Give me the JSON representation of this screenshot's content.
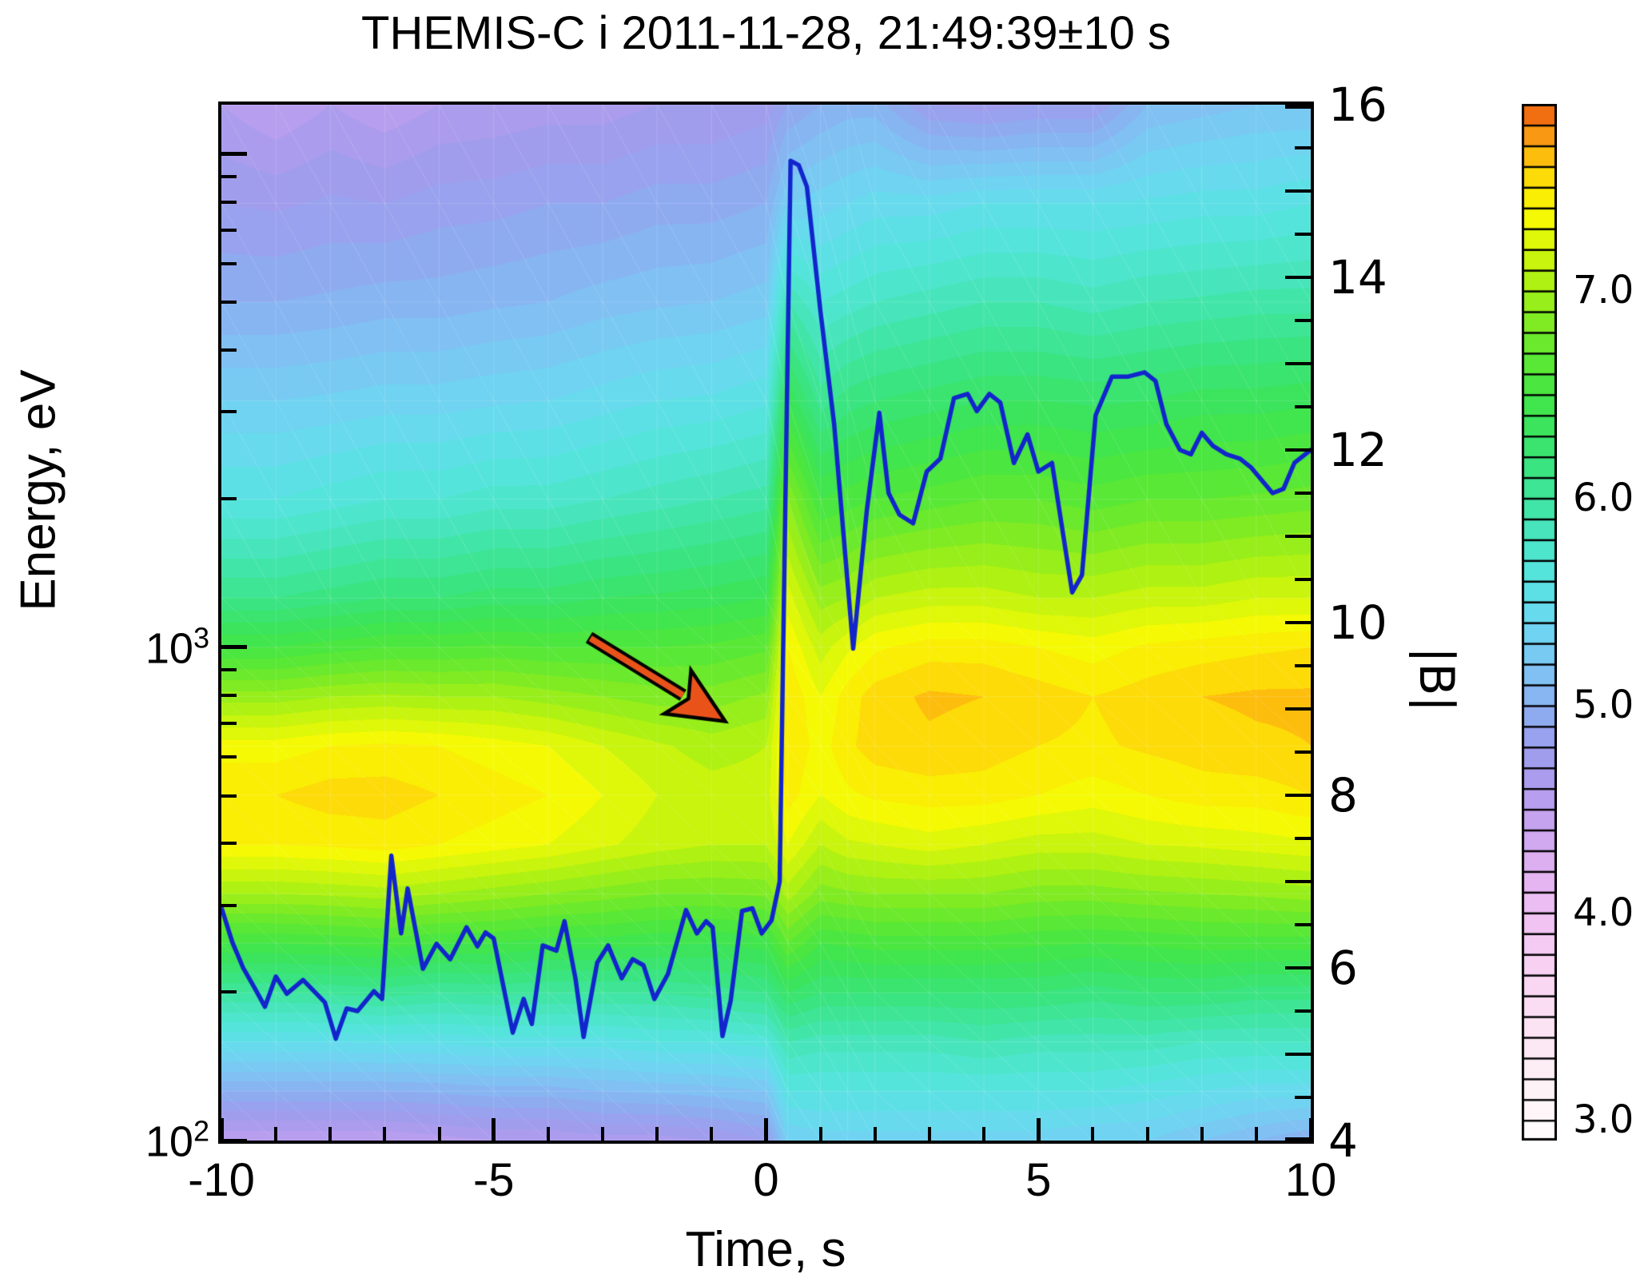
{
  "title": "THEMIS-C i 2011-11-28, 21:49:39±10 s",
  "axes": {
    "x": {
      "label": "Time, s",
      "min": -10,
      "max": 10,
      "major_ticks": [
        -10,
        -5,
        0,
        5,
        10
      ],
      "major_tick_labels": [
        "-10",
        "-5",
        "0",
        "5",
        "10"
      ],
      "minor_step": 1
    },
    "y_left": {
      "label": "Energy, eV",
      "scale": "log",
      "min_log10": 2.0,
      "max_log10": 4.1,
      "major_tick_labels": [
        {
          "base": "10",
          "exp": "2",
          "log10": 2
        },
        {
          "base": "10",
          "exp": "3",
          "log10": 3
        }
      ],
      "unlabeled_major_log10": [
        4
      ]
    },
    "y_right": {
      "label": "|B|",
      "min": 4,
      "max": 16,
      "major_step": 1,
      "minor_step": 0.5,
      "labeled_ticks": [
        16,
        14,
        12,
        10,
        8,
        6,
        4
      ],
      "labels": [
        "16",
        "14",
        "12",
        "10",
        "8",
        "6",
        "4"
      ]
    }
  },
  "colorbar": {
    "min_value": 2.9,
    "max_value": 7.9,
    "segments": 50,
    "tick_values": [
      7.0,
      6.0,
      5.0,
      4.0,
      3.0
    ],
    "tick_labels": [
      "7.0",
      "6.0",
      "5.0",
      "4.0",
      "3.0"
    ]
  },
  "colors": {
    "b_line": "#1225cc",
    "arrow_fill": "#e9531a",
    "arrow_outline": "#000000",
    "frame": "#000000",
    "colormap_anchors": [
      [
        2.9,
        "#fffcfd"
      ],
      [
        3.2,
        "#fdf0f5"
      ],
      [
        3.5,
        "#fbe0f3"
      ],
      [
        3.8,
        "#f6cdf2"
      ],
      [
        4.0,
        "#eec0f2"
      ],
      [
        4.2,
        "#e2b2f1"
      ],
      [
        4.4,
        "#cba6ef"
      ],
      [
        4.6,
        "#b19bed"
      ],
      [
        4.8,
        "#9c9ded"
      ],
      [
        5.0,
        "#8bb0f1"
      ],
      [
        5.2,
        "#7cc5f4"
      ],
      [
        5.4,
        "#6bd8f0"
      ],
      [
        5.6,
        "#59e3e2"
      ],
      [
        5.8,
        "#4be5c6"
      ],
      [
        6.0,
        "#3fe59e"
      ],
      [
        6.2,
        "#39e478"
      ],
      [
        6.4,
        "#3ce453"
      ],
      [
        6.6,
        "#50e73a"
      ],
      [
        6.8,
        "#74ea27"
      ],
      [
        7.0,
        "#a3ef15"
      ],
      [
        7.2,
        "#d4f50a"
      ],
      [
        7.35,
        "#f5fa04"
      ],
      [
        7.5,
        "#fde806"
      ],
      [
        7.6,
        "#fdcf09"
      ],
      [
        7.7,
        "#fcab10"
      ],
      [
        7.8,
        "#f68414"
      ],
      [
        7.88,
        "#ee620f"
      ],
      [
        7.95,
        "#e44b0d"
      ]
    ]
  },
  "chart_data": {
    "type": "heatmap",
    "title": "THEMIS-C i 2011-11-28, 21:49:39±10 s",
    "xlabel": "Time, s",
    "ylabel": "Energy, eV",
    "colorbar_label_values": [
      7.0,
      6.0,
      5.0,
      4.0,
      3.0
    ],
    "xlim": [
      -10,
      10
    ],
    "ylim_log10_ev": [
      2.0,
      4.1
    ],
    "value_range": [
      2.9,
      7.9
    ],
    "spectrogram": {
      "comment": "log10 ion energy flux vs time (s) and log10 energy (eV); rows of values follow log_energy order (high to low)",
      "times": [
        -10,
        -9,
        -8,
        -7,
        -6,
        -5,
        -4,
        -3,
        -2,
        -1,
        0,
        0.4,
        1,
        1.5,
        2,
        3,
        4,
        5,
        6,
        7,
        8,
        9,
        10
      ],
      "log_energy": [
        4.1,
        3.9,
        3.7,
        3.5,
        3.3,
        3.1,
        3.0,
        2.9,
        2.8,
        2.7,
        2.6,
        2.5,
        2.4,
        2.3,
        2.2,
        2.1,
        2.0
      ],
      "values": [
        [
          4.6,
          4.8,
          5.0,
          5.3,
          5.6,
          6.1,
          6.5,
          6.95,
          7.35,
          7.5,
          7.4,
          7.0,
          6.5,
          6.0,
          5.5,
          5.0,
          4.5
        ],
        [
          4.5,
          4.78,
          5.0,
          5.3,
          5.6,
          6.1,
          6.5,
          6.95,
          7.35,
          7.5,
          7.4,
          7.0,
          6.5,
          6.0,
          5.5,
          5.0,
          4.5
        ],
        [
          4.6,
          4.82,
          5.02,
          5.32,
          5.65,
          6.15,
          6.55,
          7.0,
          7.4,
          7.55,
          7.42,
          7.02,
          6.52,
          6.02,
          5.5,
          5.0,
          4.5
        ],
        [
          4.52,
          4.8,
          5.05,
          5.35,
          5.7,
          6.2,
          6.6,
          7.02,
          7.42,
          7.55,
          7.45,
          7.05,
          6.55,
          6.05,
          5.52,
          5.0,
          4.5
        ],
        [
          4.6,
          4.85,
          5.05,
          5.35,
          5.7,
          6.2,
          6.6,
          7.0,
          7.4,
          7.5,
          7.4,
          7.0,
          6.5,
          6.0,
          5.52,
          5.02,
          4.55
        ],
        [
          4.62,
          4.86,
          5.08,
          5.38,
          5.75,
          6.25,
          6.62,
          7.0,
          7.35,
          7.45,
          7.35,
          6.95,
          6.5,
          6.02,
          5.55,
          5.05,
          4.6
        ],
        [
          4.65,
          4.9,
          5.1,
          5.4,
          5.75,
          6.25,
          6.6,
          6.95,
          7.3,
          7.4,
          7.3,
          6.9,
          6.45,
          6.0,
          5.55,
          5.05,
          4.6
        ],
        [
          4.65,
          4.9,
          5.15,
          5.45,
          5.8,
          6.3,
          6.6,
          6.9,
          7.2,
          7.3,
          7.22,
          6.85,
          6.45,
          6.0,
          5.55,
          5.1,
          4.65
        ],
        [
          4.7,
          4.95,
          5.18,
          5.5,
          5.85,
          6.32,
          6.6,
          6.85,
          7.12,
          7.2,
          7.15,
          6.8,
          6.42,
          6.0,
          5.6,
          5.12,
          4.65
        ],
        [
          4.7,
          4.95,
          5.2,
          5.52,
          5.9,
          6.35,
          6.62,
          6.85,
          7.05,
          7.15,
          7.1,
          6.8,
          6.4,
          6.05,
          5.6,
          5.15,
          4.7
        ],
        [
          4.75,
          5.0,
          5.25,
          5.58,
          5.95,
          6.4,
          6.68,
          6.92,
          7.1,
          7.15,
          7.1,
          6.82,
          6.45,
          6.1,
          5.65,
          5.2,
          4.8
        ],
        [
          4.9,
          5.3,
          5.9,
          6.4,
          6.9,
          7.25,
          7.4,
          7.5,
          7.5,
          7.45,
          7.3,
          7.05,
          6.7,
          6.3,
          5.9,
          5.6,
          5.3
        ],
        [
          5.0,
          5.35,
          5.7,
          6.05,
          6.5,
          6.95,
          7.15,
          7.3,
          7.35,
          7.3,
          7.1,
          6.85,
          6.5,
          6.2,
          5.85,
          5.6,
          5.35
        ],
        [
          5.05,
          5.4,
          5.75,
          6.15,
          6.55,
          7.0,
          7.28,
          7.45,
          7.48,
          7.38,
          7.18,
          6.88,
          6.52,
          6.2,
          5.85,
          5.6,
          5.35
        ],
        [
          5.05,
          5.45,
          5.8,
          6.2,
          6.6,
          7.1,
          7.38,
          7.55,
          7.55,
          7.42,
          7.2,
          6.9,
          6.55,
          6.2,
          5.85,
          5.6,
          5.35
        ],
        [
          4.8,
          5.45,
          5.85,
          6.25,
          6.65,
          7.15,
          7.45,
          7.62,
          7.58,
          7.45,
          7.25,
          6.9,
          6.55,
          6.2,
          5.85,
          5.6,
          5.35
        ],
        [
          4.75,
          5.5,
          5.9,
          6.3,
          6.7,
          7.15,
          7.45,
          7.6,
          7.55,
          7.45,
          7.2,
          6.9,
          6.55,
          6.2,
          5.9,
          5.6,
          5.35
        ],
        [
          4.8,
          5.5,
          5.9,
          6.3,
          6.7,
          7.1,
          7.4,
          7.55,
          7.5,
          7.4,
          7.15,
          6.85,
          6.52,
          6.2,
          5.85,
          5.6,
          5.35
        ],
        [
          4.8,
          5.5,
          5.85,
          6.28,
          6.65,
          7.1,
          7.35,
          7.5,
          7.48,
          7.35,
          7.15,
          6.85,
          6.5,
          6.15,
          5.85,
          5.6,
          5.3
        ],
        [
          5.1,
          5.52,
          5.9,
          6.3,
          6.7,
          7.15,
          7.42,
          7.55,
          7.52,
          7.4,
          7.2,
          6.88,
          6.52,
          6.2,
          5.85,
          5.55,
          5.3
        ],
        [
          5.15,
          5.55,
          5.92,
          6.35,
          6.7,
          7.15,
          7.45,
          7.6,
          7.55,
          7.45,
          7.22,
          6.9,
          6.55,
          6.2,
          5.8,
          5.5,
          5.2
        ],
        [
          5.2,
          5.55,
          5.95,
          6.35,
          6.72,
          7.2,
          7.48,
          7.62,
          7.58,
          7.45,
          7.25,
          6.92,
          6.55,
          6.15,
          5.8,
          5.45,
          5.1
        ],
        [
          5.2,
          5.6,
          5.95,
          6.38,
          6.75,
          7.2,
          7.5,
          7.62,
          7.6,
          7.5,
          7.28,
          6.95,
          6.55,
          6.15,
          5.8,
          5.45,
          5.0
        ]
      ]
    },
    "b_field_line": {
      "name": "|B|",
      "points": [
        [
          -10,
          6.7
        ],
        [
          -9.8,
          6.3
        ],
        [
          -9.6,
          6.0
        ],
        [
          -9.4,
          5.78
        ],
        [
          -9.2,
          5.55
        ],
        [
          -9.0,
          5.9
        ],
        [
          -8.8,
          5.7
        ],
        [
          -8.5,
          5.86
        ],
        [
          -8.3,
          5.73
        ],
        [
          -8.1,
          5.6
        ],
        [
          -7.9,
          5.18
        ],
        [
          -7.7,
          5.53
        ],
        [
          -7.5,
          5.5
        ],
        [
          -7.2,
          5.73
        ],
        [
          -7.05,
          5.64
        ],
        [
          -6.88,
          7.3
        ],
        [
          -6.7,
          6.4
        ],
        [
          -6.58,
          6.92
        ],
        [
          -6.3,
          5.99
        ],
        [
          -6.05,
          6.28
        ],
        [
          -5.8,
          6.1
        ],
        [
          -5.5,
          6.47
        ],
        [
          -5.3,
          6.25
        ],
        [
          -5.15,
          6.41
        ],
        [
          -5.0,
          6.34
        ],
        [
          -4.65,
          5.25
        ],
        [
          -4.45,
          5.64
        ],
        [
          -4.3,
          5.35
        ],
        [
          -4.1,
          6.26
        ],
        [
          -3.85,
          6.2
        ],
        [
          -3.7,
          6.54
        ],
        [
          -3.5,
          5.88
        ],
        [
          -3.35,
          5.2
        ],
        [
          -3.1,
          6.06
        ],
        [
          -2.9,
          6.26
        ],
        [
          -2.65,
          5.88
        ],
        [
          -2.45,
          6.1
        ],
        [
          -2.25,
          6.03
        ],
        [
          -2.05,
          5.64
        ],
        [
          -1.8,
          5.93
        ],
        [
          -1.47,
          6.67
        ],
        [
          -1.27,
          6.4
        ],
        [
          -1.1,
          6.54
        ],
        [
          -0.98,
          6.47
        ],
        [
          -0.8,
          5.21
        ],
        [
          -0.65,
          5.62
        ],
        [
          -0.44,
          6.66
        ],
        [
          -0.25,
          6.69
        ],
        [
          -0.08,
          6.4
        ],
        [
          0.1,
          6.55
        ],
        [
          0.25,
          7.0
        ],
        [
          0.45,
          15.35
        ],
        [
          0.6,
          15.3
        ],
        [
          0.75,
          15.05
        ],
        [
          1.0,
          13.6
        ],
        [
          1.25,
          12.3
        ],
        [
          1.6,
          9.7
        ],
        [
          1.85,
          11.3
        ],
        [
          2.08,
          12.43
        ],
        [
          2.25,
          11.5
        ],
        [
          2.45,
          11.25
        ],
        [
          2.7,
          11.15
        ],
        [
          2.95,
          11.75
        ],
        [
          3.2,
          11.9
        ],
        [
          3.45,
          12.6
        ],
        [
          3.7,
          12.65
        ],
        [
          3.87,
          12.45
        ],
        [
          4.1,
          12.65
        ],
        [
          4.3,
          12.55
        ],
        [
          4.55,
          11.85
        ],
        [
          4.8,
          12.18
        ],
        [
          5.0,
          11.75
        ],
        [
          5.25,
          11.85
        ],
        [
          5.62,
          10.35
        ],
        [
          5.8,
          10.55
        ],
        [
          6.05,
          12.4
        ],
        [
          6.35,
          12.85
        ],
        [
          6.65,
          12.85
        ],
        [
          6.95,
          12.9
        ],
        [
          7.15,
          12.8
        ],
        [
          7.35,
          12.3
        ],
        [
          7.6,
          12.0
        ],
        [
          7.8,
          11.95
        ],
        [
          8.0,
          12.2
        ],
        [
          8.2,
          12.05
        ],
        [
          8.45,
          11.95
        ],
        [
          8.7,
          11.9
        ],
        [
          8.9,
          11.8
        ],
        [
          9.1,
          11.65
        ],
        [
          9.3,
          11.5
        ],
        [
          9.5,
          11.55
        ],
        [
          9.7,
          11.85
        ],
        [
          10,
          12.0
        ]
      ]
    },
    "annotation_arrow": {
      "from": {
        "t": -3.25,
        "log10_energy": 3.02
      },
      "to": {
        "t": -0.75,
        "log10_energy": 2.85
      }
    }
  }
}
